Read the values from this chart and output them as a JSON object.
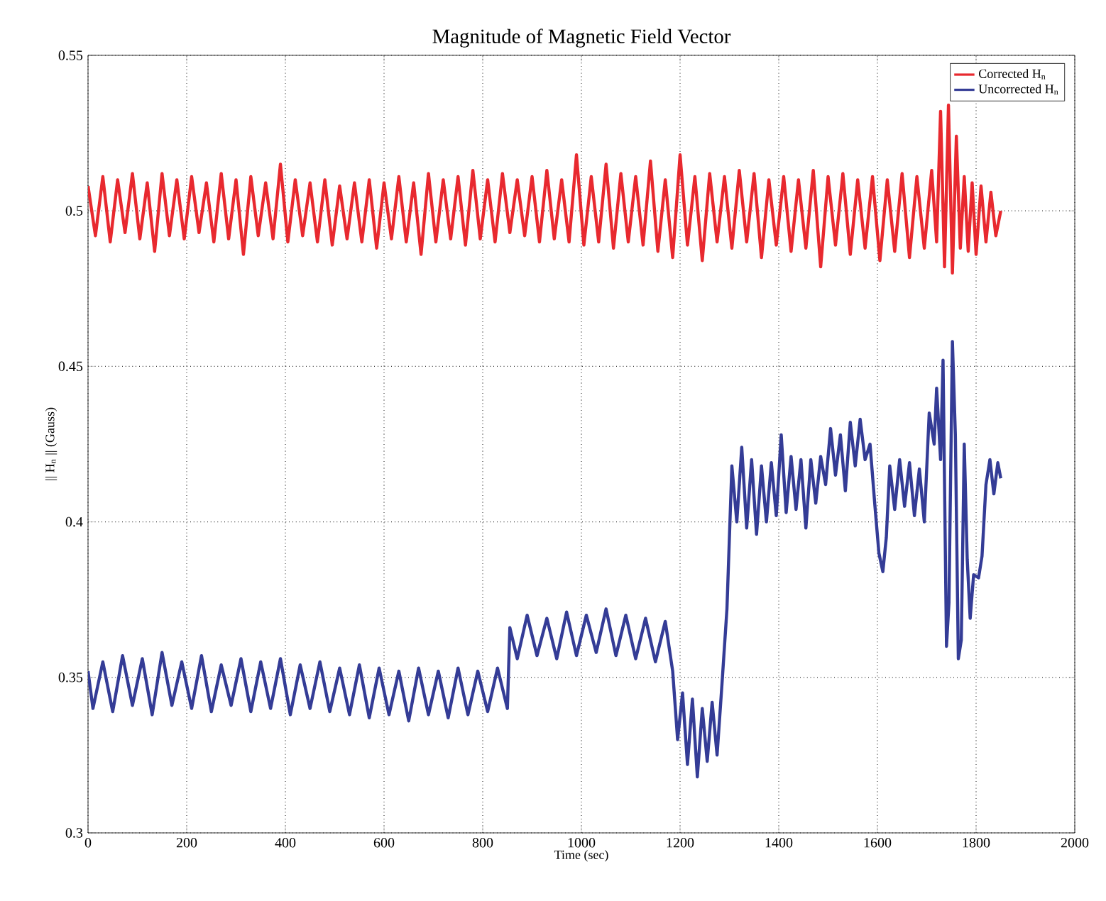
{
  "chart_data": {
    "type": "line",
    "title": "Magnitude of Magnetic Field Vector",
    "xlabel": "Time (sec)",
    "ylabel": "|| H$_{n}$ || (Gauss)",
    "xlim": [
      0,
      2000
    ],
    "ylim": [
      0.3,
      0.55
    ],
    "xticks": [
      0,
      200,
      400,
      600,
      800,
      1000,
      1200,
      1400,
      1600,
      1800,
      2000
    ],
    "yticks": [
      0.3,
      0.35,
      0.4,
      0.45,
      0.5,
      0.55
    ],
    "grid": true,
    "legend": "top right",
    "line_style": "solid",
    "marker": "none",
    "series": [
      {
        "name": "Corrected H$_{n}$",
        "color": "#e8292f",
        "x": [
          0,
          15,
          30,
          45,
          60,
          75,
          90,
          105,
          120,
          135,
          150,
          165,
          180,
          195,
          210,
          225,
          240,
          255,
          270,
          285,
          300,
          315,
          330,
          345,
          360,
          375,
          390,
          405,
          420,
          435,
          450,
          465,
          480,
          495,
          510,
          525,
          540,
          555,
          570,
          585,
          600,
          615,
          630,
          645,
          660,
          675,
          690,
          705,
          720,
          735,
          750,
          765,
          780,
          795,
          810,
          825,
          840,
          855,
          870,
          885,
          900,
          915,
          930,
          945,
          960,
          975,
          990,
          1005,
          1020,
          1035,
          1050,
          1065,
          1080,
          1095,
          1110,
          1125,
          1140,
          1155,
          1170,
          1185,
          1200,
          1215,
          1230,
          1245,
          1260,
          1275,
          1290,
          1305,
          1320,
          1335,
          1350,
          1365,
          1380,
          1395,
          1410,
          1425,
          1440,
          1455,
          1470,
          1485,
          1500,
          1515,
          1530,
          1545,
          1560,
          1575,
          1590,
          1605,
          1620,
          1635,
          1650,
          1665,
          1680,
          1695,
          1710,
          1720,
          1728,
          1736,
          1744,
          1752,
          1760,
          1768,
          1776,
          1784,
          1792,
          1800,
          1810,
          1820,
          1830,
          1840,
          1850
        ],
        "values": [
          0.508,
          0.492,
          0.511,
          0.49,
          0.51,
          0.493,
          0.512,
          0.491,
          0.509,
          0.487,
          0.512,
          0.492,
          0.51,
          0.491,
          0.511,
          0.493,
          0.509,
          0.49,
          0.512,
          0.491,
          0.51,
          0.486,
          0.511,
          0.492,
          0.509,
          0.491,
          0.515,
          0.49,
          0.51,
          0.492,
          0.509,
          0.49,
          0.51,
          0.489,
          0.508,
          0.491,
          0.509,
          0.49,
          0.51,
          0.488,
          0.509,
          0.491,
          0.511,
          0.49,
          0.509,
          0.486,
          0.512,
          0.49,
          0.51,
          0.491,
          0.511,
          0.489,
          0.513,
          0.491,
          0.51,
          0.49,
          0.512,
          0.493,
          0.51,
          0.492,
          0.511,
          0.49,
          0.513,
          0.491,
          0.51,
          0.49,
          0.518,
          0.489,
          0.511,
          0.49,
          0.515,
          0.488,
          0.512,
          0.49,
          0.511,
          0.489,
          0.516,
          0.487,
          0.51,
          0.485,
          0.518,
          0.489,
          0.511,
          0.484,
          0.512,
          0.49,
          0.511,
          0.488,
          0.513,
          0.49,
          0.512,
          0.485,
          0.51,
          0.489,
          0.511,
          0.487,
          0.51,
          0.488,
          0.513,
          0.482,
          0.511,
          0.489,
          0.512,
          0.486,
          0.51,
          0.488,
          0.511,
          0.484,
          0.51,
          0.487,
          0.512,
          0.485,
          0.511,
          0.488,
          0.513,
          0.49,
          0.532,
          0.482,
          0.534,
          0.48,
          0.524,
          0.488,
          0.511,
          0.487,
          0.509,
          0.486,
          0.508,
          0.49,
          0.506,
          0.492,
          0.5
        ]
      },
      {
        "name": "Uncorrected H$_{n}$",
        "color": "#343c96",
        "x": [
          0,
          10,
          30,
          50,
          70,
          90,
          110,
          130,
          150,
          170,
          190,
          210,
          230,
          250,
          270,
          290,
          310,
          330,
          350,
          370,
          390,
          410,
          430,
          450,
          470,
          490,
          510,
          530,
          550,
          570,
          590,
          610,
          630,
          650,
          670,
          690,
          710,
          730,
          750,
          770,
          790,
          810,
          830,
          850,
          855,
          870,
          890,
          910,
          930,
          950,
          970,
          990,
          1010,
          1030,
          1050,
          1070,
          1090,
          1110,
          1130,
          1150,
          1170,
          1185,
          1195,
          1205,
          1215,
          1225,
          1235,
          1245,
          1255,
          1265,
          1275,
          1285,
          1295,
          1305,
          1315,
          1325,
          1335,
          1345,
          1355,
          1365,
          1375,
          1385,
          1395,
          1405,
          1415,
          1425,
          1435,
          1445,
          1455,
          1465,
          1475,
          1485,
          1495,
          1505,
          1515,
          1525,
          1535,
          1545,
          1555,
          1565,
          1575,
          1585,
          1595,
          1603,
          1611,
          1618,
          1625,
          1635,
          1645,
          1655,
          1665,
          1675,
          1685,
          1695,
          1705,
          1715,
          1720,
          1728,
          1733,
          1740,
          1745,
          1752,
          1758,
          1764,
          1770,
          1776,
          1782,
          1788,
          1795,
          1805,
          1812,
          1820,
          1828,
          1836,
          1844,
          1850
        ],
        "values": [
          0.352,
          0.34,
          0.355,
          0.339,
          0.357,
          0.341,
          0.356,
          0.338,
          0.358,
          0.341,
          0.355,
          0.34,
          0.357,
          0.339,
          0.354,
          0.341,
          0.356,
          0.339,
          0.355,
          0.34,
          0.356,
          0.338,
          0.354,
          0.34,
          0.355,
          0.339,
          0.353,
          0.338,
          0.354,
          0.337,
          0.353,
          0.338,
          0.352,
          0.336,
          0.353,
          0.338,
          0.352,
          0.337,
          0.353,
          0.338,
          0.352,
          0.339,
          0.353,
          0.34,
          0.366,
          0.356,
          0.37,
          0.357,
          0.369,
          0.356,
          0.371,
          0.357,
          0.37,
          0.358,
          0.372,
          0.357,
          0.37,
          0.356,
          0.369,
          0.355,
          0.368,
          0.352,
          0.33,
          0.345,
          0.322,
          0.343,
          0.318,
          0.34,
          0.323,
          0.342,
          0.325,
          0.348,
          0.372,
          0.418,
          0.4,
          0.424,
          0.398,
          0.42,
          0.396,
          0.418,
          0.4,
          0.419,
          0.402,
          0.428,
          0.403,
          0.421,
          0.404,
          0.42,
          0.398,
          0.42,
          0.406,
          0.421,
          0.412,
          0.43,
          0.415,
          0.428,
          0.41,
          0.432,
          0.418,
          0.433,
          0.42,
          0.425,
          0.405,
          0.39,
          0.384,
          0.395,
          0.418,
          0.404,
          0.42,
          0.405,
          0.419,
          0.402,
          0.417,
          0.4,
          0.435,
          0.425,
          0.443,
          0.42,
          0.452,
          0.36,
          0.374,
          0.458,
          0.428,
          0.356,
          0.362,
          0.425,
          0.388,
          0.369,
          0.383,
          0.382,
          0.389,
          0.412,
          0.42,
          0.409,
          0.419,
          0.414
        ]
      }
    ]
  }
}
